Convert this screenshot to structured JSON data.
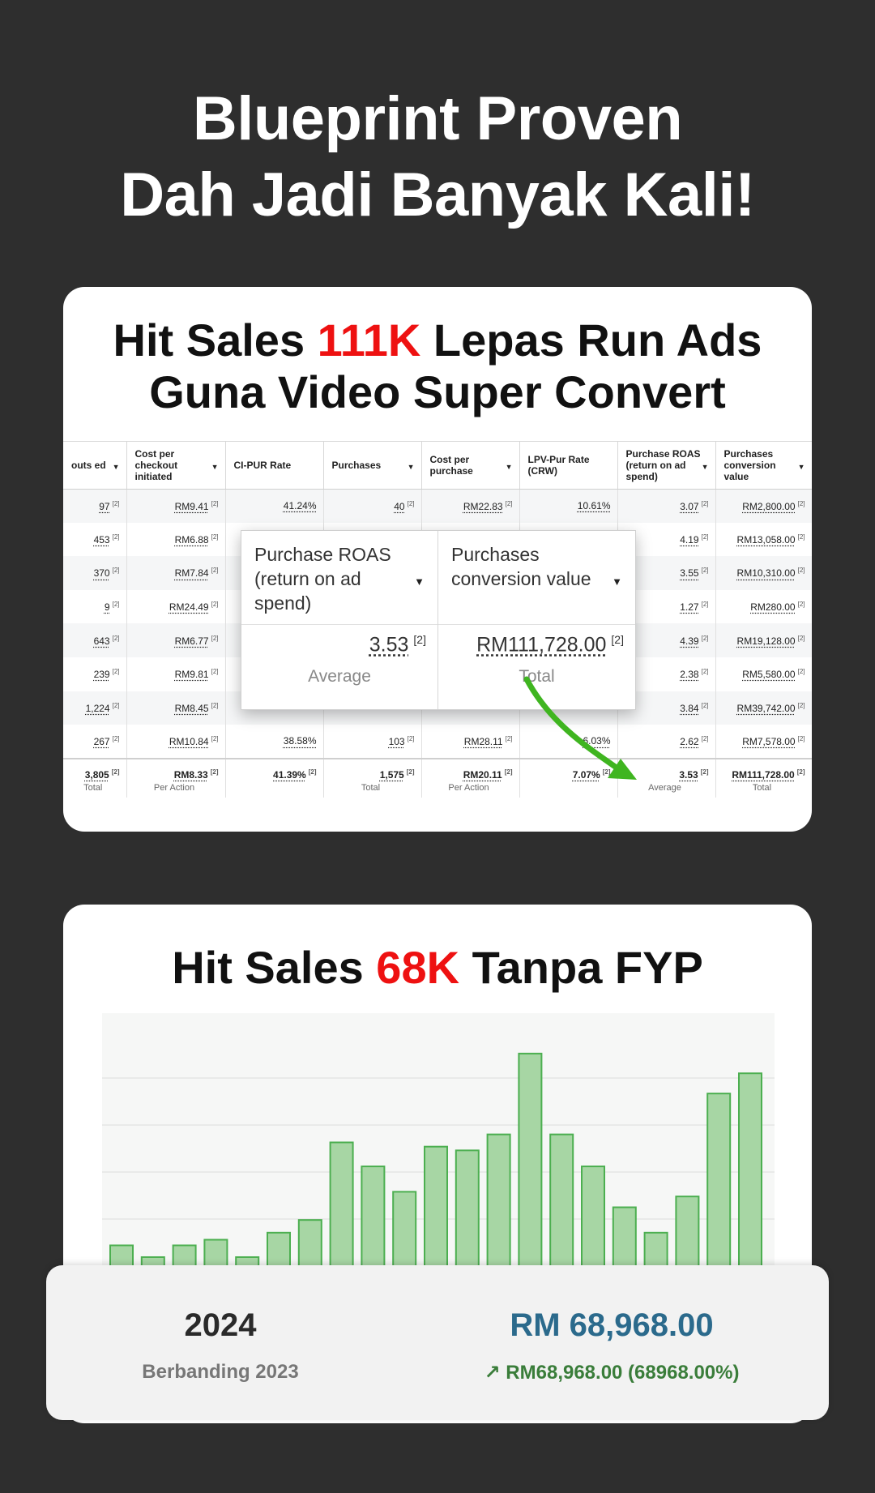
{
  "headline": {
    "line1": "Blueprint Proven",
    "line2": "Dah Jadi Banyak Kali!"
  },
  "card1": {
    "title": {
      "pre": "Hit Sales ",
      "highlight": "111K",
      "post": " Lepas Run Ads",
      "line2": "Guna Video Super Convert"
    },
    "table": {
      "headers": [
        "outs ed",
        "Cost per checkout initiated",
        "CI-PUR Rate",
        "Purchases",
        "Cost per purchase",
        "LPV-Pur Rate (CRW)",
        "Purchase ROAS (return on ad spend)",
        "Purchases conversion value"
      ],
      "header_arrows": [
        "▼",
        "▼",
        "",
        "▼",
        "▼",
        "",
        "▼",
        "▼"
      ],
      "rows": [
        [
          "97",
          "RM9.41",
          "41.24%",
          "40",
          "RM22.83",
          "10.61%",
          "3.07",
          "RM2,800.00"
        ],
        [
          "453",
          "RM6.88",
          "",
          "",
          "",
          "",
          "4.19",
          "RM13,058.00"
        ],
        [
          "370",
          "RM7.84",
          "",
          "",
          "",
          "",
          "3.55",
          "RM10,310.00"
        ],
        [
          "9",
          "RM24.49",
          "",
          "",
          "",
          "",
          "1.27",
          "RM280.00"
        ],
        [
          "643",
          "RM6.77",
          "",
          "",
          "",
          "",
          "4.39",
          "RM19,128.00"
        ],
        [
          "239",
          "RM9.81",
          "",
          "",
          "",
          "",
          "2.38",
          "RM5,580.00"
        ],
        [
          "1,224",
          "RM8.45",
          "",
          "",
          "",
          "",
          "3.84",
          "RM39,742.00"
        ],
        [
          "267",
          "RM10.84",
          "38.58%",
          "103",
          "RM28.11",
          "6.03%",
          "2.62",
          "RM7,578.00"
        ]
      ],
      "row_footnotes": [
        "[2]",
        "[2]",
        "",
        "[2]",
        "[2]",
        "",
        "[2]",
        "[2]"
      ],
      "totals": [
        "3,805",
        "RM8.33",
        "41.39%",
        "1,575",
        "RM20.11",
        "7.07%",
        "3.53",
        "RM111,728.00"
      ],
      "totals_footnote": "[2]",
      "totals_labels": [
        "Total",
        "Per Action",
        "",
        "Total",
        "Per Action",
        "",
        "Average",
        "Total"
      ]
    },
    "popup": {
      "columns": [
        {
          "header": "Purchase ROAS (return on ad spend)",
          "arrow": "▼",
          "value": "3.53",
          "footnote": "[2]",
          "label": "Average"
        },
        {
          "header": "Purchases conversion value",
          "arrow": "▼",
          "value": "RM111,728.00",
          "footnote": "[2]",
          "label": "Total"
        }
      ]
    },
    "arrow_color": "#3fb520"
  },
  "card2": {
    "title": {
      "pre": "Hit Sales ",
      "highlight": "68K",
      "post": " Tanpa FYP"
    },
    "chart_data": {
      "type": "bar",
      "values": [
        4.4,
        1.9,
        4.4,
        5.6,
        1.9,
        7.1,
        9.8,
        26.3,
        21.2,
        15.8,
        25.4,
        24.6,
        28.0,
        45.2,
        28.0,
        21.2,
        12.5,
        7.1,
        14.8,
        36.7,
        41.0
      ],
      "ylim": [
        0,
        50
      ],
      "grid": true,
      "bar_fill": "#a7d6a4",
      "bar_stroke": "#4caf50"
    },
    "summary": {
      "year": "2024",
      "comparison": "Berbanding 2023",
      "amount": "RM 68,968.00",
      "change_icon": "↗",
      "change": "RM68,968.00  (68968.00%)"
    }
  },
  "colors": {
    "background": "#2e2e2e",
    "highlight": "#ee1111",
    "amount": "#2b6a8c",
    "change": "#3a7d3a"
  }
}
